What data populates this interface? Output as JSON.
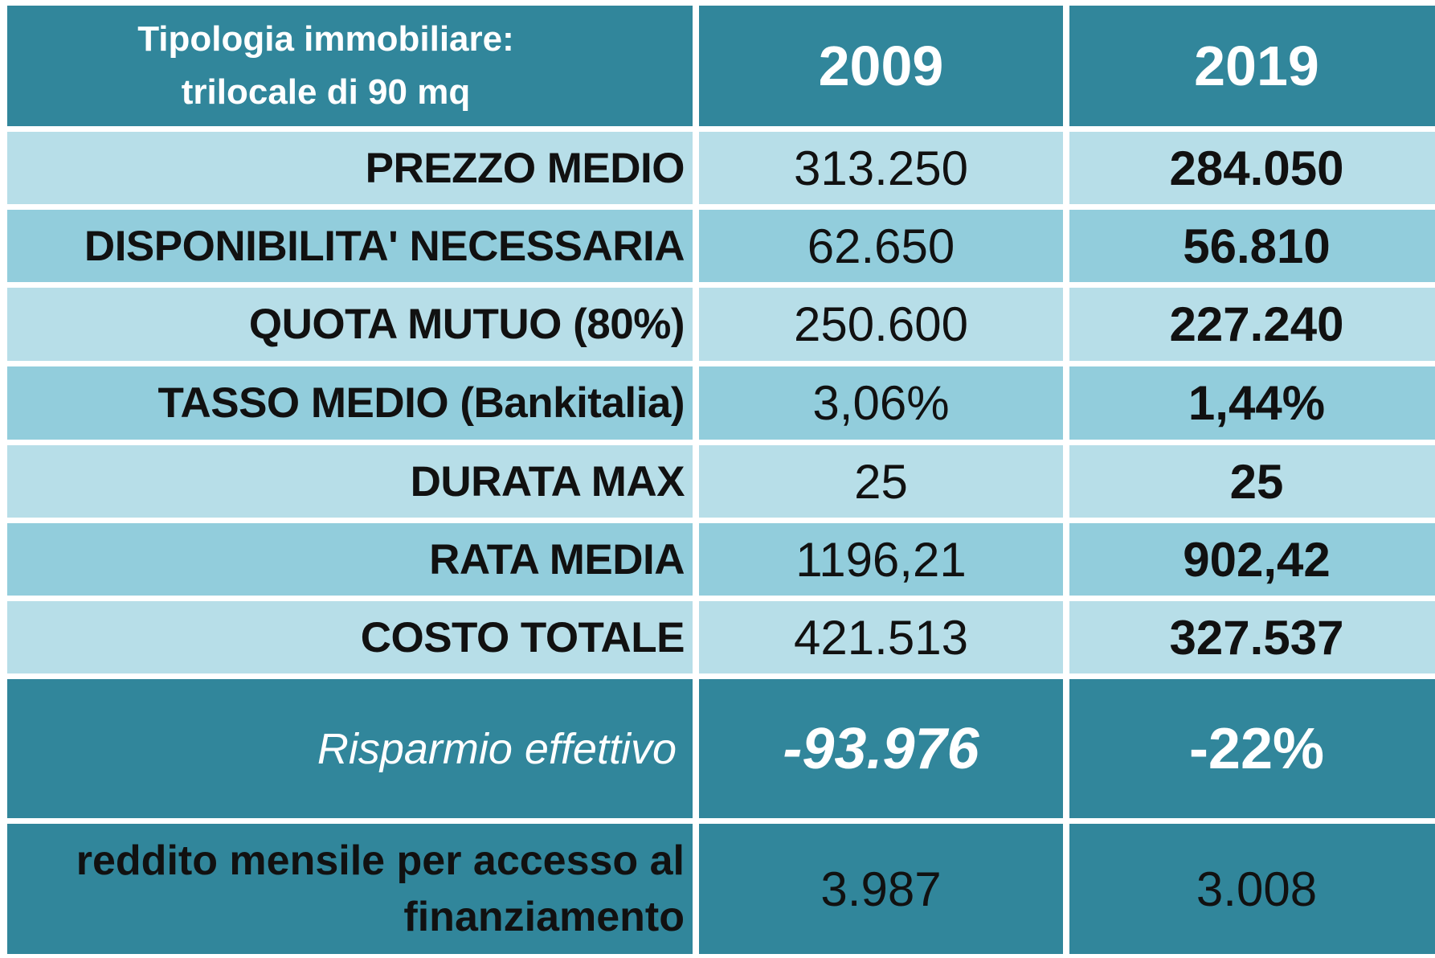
{
  "header": {
    "title_line1": "Tipologia immobiliare:",
    "title_line2": "trilocale di 90 mq",
    "year1": "2009",
    "year2": "2019"
  },
  "rows": [
    {
      "label": "PREZZO MEDIO",
      "v2009": "313.250",
      "v2019": "284.050"
    },
    {
      "label": "DISPONIBILITA' NECESSARIA",
      "v2009": "62.650",
      "v2019": "56.810"
    },
    {
      "label": "QUOTA MUTUO (80%)",
      "v2009": "250.600",
      "v2019": "227.240"
    },
    {
      "label": "TASSO MEDIO (Bankitalia)",
      "v2009": "3,06%",
      "v2019": "1,44%"
    },
    {
      "label": "DURATA MAX",
      "v2009": "25",
      "v2019": "25"
    },
    {
      "label": "RATA MEDIA",
      "v2009": "1196,21",
      "v2019": "902,42"
    },
    {
      "label": "COSTO TOTALE",
      "v2009": "421.513",
      "v2019": "327.537"
    }
  ],
  "savings": {
    "label": "Risparmio effettivo",
    "amount": "-93.976",
    "percent": "-22%"
  },
  "income": {
    "label": "reddito mensile per accesso al finanziamento",
    "v2009": "3.987",
    "v2019": "3.008"
  },
  "colors": {
    "header_bg": "#31869b",
    "row_light": "#b7dee8",
    "row_mid": "#92cddc"
  }
}
